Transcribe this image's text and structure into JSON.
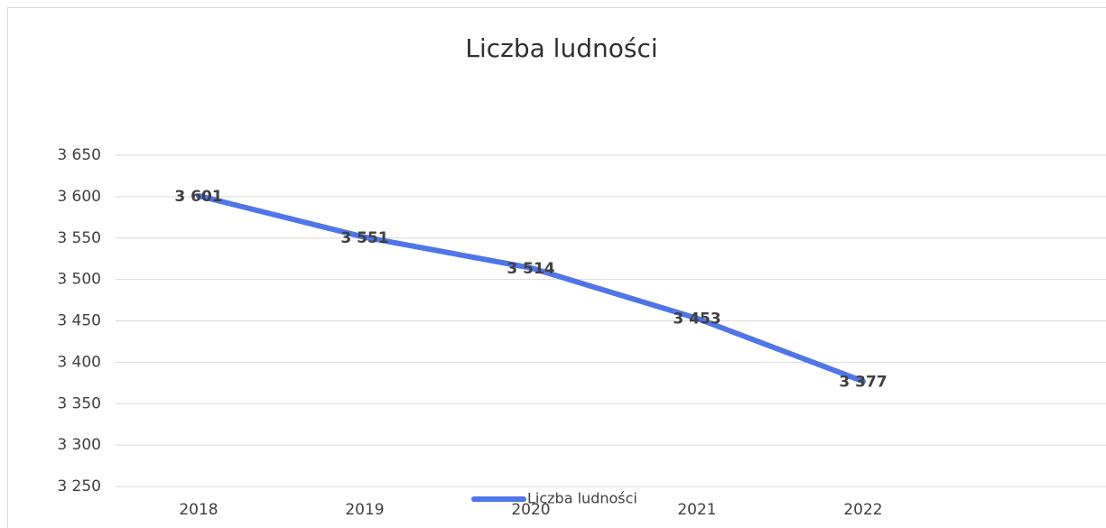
{
  "chart_data": {
    "type": "line",
    "title": "Liczba ludności",
    "categories": [
      "2018",
      "2019",
      "2020",
      "2021",
      "2022"
    ],
    "series": [
      {
        "name": "Liczba ludności",
        "color": "#4f75e8",
        "values": [
          3601,
          3551,
          3514,
          3453,
          3377
        ],
        "value_labels": [
          "3 601",
          "3 551",
          "3 514",
          "3 453",
          "3 377"
        ]
      }
    ],
    "ylim": [
      3250,
      3650
    ],
    "yticks": [
      {
        "value": 3250,
        "label": "3 250"
      },
      {
        "value": 3300,
        "label": "3 300"
      },
      {
        "value": 3350,
        "label": "3 350"
      },
      {
        "value": 3400,
        "label": "3 400"
      },
      {
        "value": 3450,
        "label": "3 450"
      },
      {
        "value": 3500,
        "label": "3 500"
      },
      {
        "value": 3550,
        "label": "3 550"
      },
      {
        "value": 3600,
        "label": "3 600"
      },
      {
        "value": 3650,
        "label": "3 650"
      }
    ],
    "grid": true,
    "legend": "bottom"
  }
}
